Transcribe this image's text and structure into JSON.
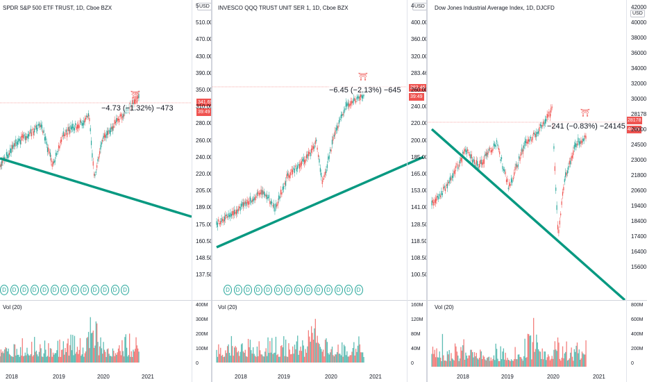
{
  "colors": {
    "up": "#26a69a",
    "down": "#ef5350",
    "trend": "#089981",
    "axis": "#131722",
    "price_tag": "#ef5350"
  },
  "x_labels": [
    "2018",
    "2019",
    "2020",
    "2021"
  ],
  "panes": [
    {
      "title": "SPDR S&P 500 ETF TRUST, 1D, Cboe BZX",
      "currency": "USD",
      "price_ticks": [
        "5",
        "510.00",
        "470.00",
        "430.00",
        "390.00",
        "350.00",
        "310.00",
        "280.00",
        "260.00",
        "240.00",
        "220.00",
        "205.00",
        "189.00",
        "175.00",
        "160.50",
        "148.50",
        "137.50"
      ],
      "last_price": "341.69",
      "countdown": "39:49",
      "change_label": "−4.73 (−1.32%) −473",
      "vol_label": "Vol (20)",
      "vol_ticks": [
        "400M",
        "300M",
        "200M",
        "100M",
        "0"
      ],
      "dividend_marker": "D",
      "dividend_count": 13,
      "flag_icon": "flag-icon"
    },
    {
      "title": "INVESCO QQQ TRUST UNIT SER 1, 1D, Cboe BZX",
      "currency": "USD",
      "price_ticks": [
        "4",
        "400.00",
        "360.00",
        "320.00",
        "283.46",
        "260.00",
        "240.00",
        "220.00",
        "200.00",
        "185.00",
        "165.00",
        "153.00",
        "141.00",
        "128.50",
        "118.50",
        "108.50",
        "100.50"
      ],
      "last_price": "283.46",
      "countdown": "39:49",
      "change_label": "−6.45 (−2.13%) −645",
      "vol_label": "Vol (20)",
      "vol_ticks": [
        "160M",
        "120M",
        "80M",
        "40M",
        "0"
      ],
      "dividend_marker": "D",
      "dividend_count": 14,
      "flag_icon": "flag-icon"
    },
    {
      "title": "Dow Jones Industrial Average Index, 1D, DJCFD",
      "currency": "USD",
      "price_ticks": [
        "42000",
        "40000",
        "38000",
        "36000",
        "34000",
        "32000",
        "30000",
        "28178",
        "26000",
        "24500",
        "23000",
        "21800",
        "20600",
        "19400",
        "18400",
        "17400",
        "16400",
        "15600"
      ],
      "last_price": "28178",
      "countdown": "46:49",
      "change_label": "−241 (−0.83%) −24145",
      "vol_label": "Vol (20)",
      "vol_ticks": [
        "800M",
        "600M",
        "400M",
        "200M",
        "0"
      ],
      "flag_icon": "flag-icon"
    }
  ]
}
